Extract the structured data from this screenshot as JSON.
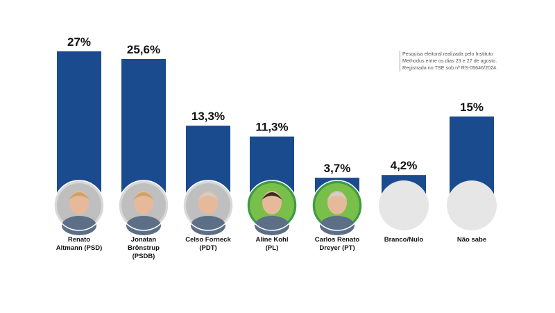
{
  "chart_data": {
    "type": "bar",
    "categories": [
      [
        "Renato",
        "Altmann (PSD)"
      ],
      [
        "Jonatan",
        "Brönstrup",
        "(PSDB)"
      ],
      [
        "Celso Forneck",
        "(PDT)"
      ],
      [
        "Aline Kohl",
        "(PL)"
      ],
      [
        "Carlos Renato",
        "Dreyer (PT)"
      ],
      [
        "Branco/Nulo"
      ],
      [
        "Não sabe"
      ]
    ],
    "values": [
      27,
      25.6,
      13.3,
      11.3,
      3.7,
      4.2,
      15
    ],
    "value_labels": [
      "27%",
      "25,6%",
      "13,3%",
      "11,3%",
      "3,7%",
      "4,2%",
      "15%"
    ],
    "title": "",
    "xlabel": "",
    "ylabel": "",
    "ylim": [
      0,
      27
    ],
    "grid": false,
    "legend": "none",
    "colors": {
      "bar": "#1a4b8f",
      "text": "#111111",
      "placeholder": "#e6e6e6"
    },
    "markers": [
      "photo-gray",
      "photo-gray",
      "photo-gray",
      "photo-green",
      "photo-green",
      "placeholder",
      "placeholder"
    ]
  },
  "note": {
    "lines": [
      "Pesquisa eleitoral realizada pelo Instituto",
      "Methodus entre os dias 23 e 27 de agosto.",
      "Registrada no TSE sob nº RS-05646/2024."
    ]
  }
}
